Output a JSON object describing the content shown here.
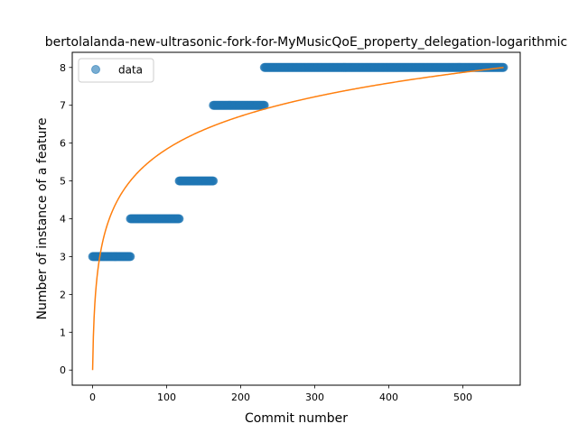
{
  "chart_data": {
    "type": "scatter",
    "title": "bertolalanda-new-ultrasonic-fork-for-MyMusicQoE_property_delegation-logarithmic",
    "xlabel": "Commit number",
    "ylabel": "Number of instance of a feature",
    "xlim": [
      -27.5,
      577.5
    ],
    "ylim": [
      -0.4,
      8.4
    ],
    "x_ticks": [
      0,
      100,
      200,
      300,
      400,
      500
    ],
    "y_ticks": [
      0,
      1,
      2,
      3,
      4,
      5,
      6,
      7,
      8
    ],
    "legend": {
      "position": "top-left",
      "entries": [
        "data"
      ]
    },
    "grid": false,
    "series": [
      {
        "name": "data",
        "kind": "points",
        "color": "#1f77b4",
        "segments": [
          {
            "x_start": 0,
            "x_end": 51,
            "y": 3
          },
          {
            "x_start": 51,
            "x_end": 117,
            "y": 4
          },
          {
            "x_start": 117,
            "x_end": 163,
            "y": 5
          },
          {
            "x_start": 163,
            "x_end": 232,
            "y": 7
          },
          {
            "x_start": 232,
            "x_end": 555,
            "y": 8
          }
        ]
      },
      {
        "kind": "fit-curve",
        "color": "#ff7f0e",
        "x_start": 0,
        "x_end": 555,
        "samples": [
          [
            0,
            0
          ],
          [
            2,
            1.39
          ],
          [
            5,
            2.28
          ],
          [
            10,
            2.96
          ],
          [
            20,
            3.64
          ],
          [
            30,
            4.03
          ],
          [
            50,
            4.52
          ],
          [
            75,
            4.91
          ],
          [
            100,
            5.18
          ],
          [
            150,
            5.57
          ],
          [
            200,
            5.85
          ],
          [
            250,
            6.07
          ],
          [
            300,
            6.24
          ],
          [
            350,
            6.39
          ],
          [
            400,
            6.52
          ],
          [
            450,
            6.64
          ],
          [
            500,
            6.74
          ],
          [
            555,
            8.0
          ]
        ]
      }
    ]
  }
}
